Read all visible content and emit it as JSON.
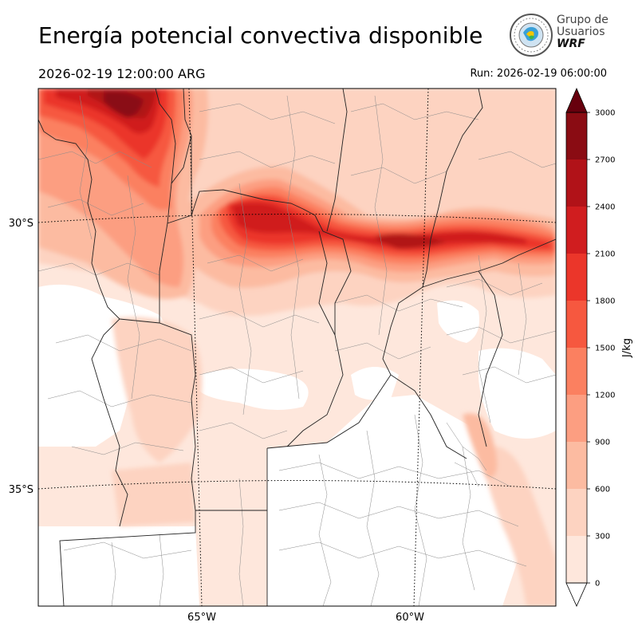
{
  "header": {
    "title": "Energía potencial convectiva disponible",
    "valid_time": "2026-02-19 12:00:00 ARG",
    "run_time": "Run: 2026-02-19 06:00:00"
  },
  "logo": {
    "line1": "Grupo de",
    "line2": "Usuarios",
    "line3": "WRF"
  },
  "map": {
    "variable": "CAPE",
    "lat_labels": [
      "30°S",
      "35°S"
    ],
    "lon_labels": [
      "65°W",
      "60°W"
    ]
  },
  "colorbar": {
    "unit": "J/kg",
    "levels": [
      0,
      300,
      600,
      900,
      1200,
      1500,
      1800,
      2100,
      2400,
      2700,
      3000
    ],
    "tick_labels": [
      "0",
      "300",
      "600",
      "900",
      "1200",
      "1500",
      "1800",
      "2100",
      "2400",
      "2700",
      "3000"
    ],
    "colors": [
      "#fee7dc",
      "#fdd3c1",
      "#fcbba1",
      "#fc9e81",
      "#fb8060",
      "#f6583f",
      "#eb362a",
      "#d01d1f",
      "#b11218",
      "#8a0c13",
      "#67000d"
    ],
    "extend": "both",
    "under_color": "#ffffff"
  }
}
